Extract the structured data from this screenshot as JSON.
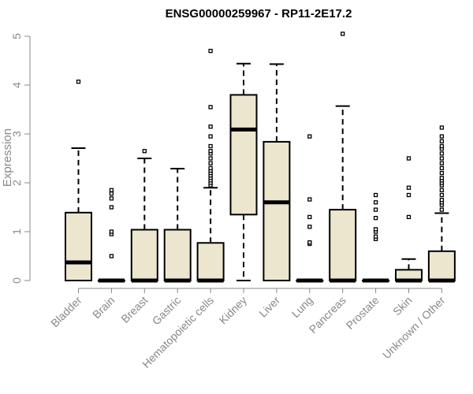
{
  "chart_data": {
    "type": "box",
    "title": "ENSG00000259967 - RP11-2E17.2",
    "ylabel": "Expression",
    "xlabel": "",
    "ylim": [
      0,
      5
    ],
    "yticks": [
      0,
      1,
      2,
      3,
      4,
      5
    ],
    "grid": false,
    "legend": "none",
    "colors": {
      "box_fill": "#ede6cf",
      "box_stroke": "#000000",
      "axis": "#888888",
      "title": "#000000"
    },
    "categories": [
      "Bladder",
      "Brain",
      "Breast",
      "Gastric",
      "Hematopoietic cells",
      "Kidney",
      "Liver",
      "Lung",
      "Pancreas",
      "Prostate",
      "Skin",
      "Unknown / Other"
    ],
    "boxes": [
      {
        "q1": 0,
        "median": 0.37,
        "q3": 1.39,
        "whisker_low": 0,
        "whisker_high": 2.71,
        "outliers": [
          4.07
        ]
      },
      {
        "q1": 0,
        "median": 0,
        "q3": 0,
        "whisker_low": 0,
        "whisker_high": 0,
        "outliers": [
          0.5,
          0.95,
          1.0,
          1.5,
          1.68,
          1.78,
          1.85
        ]
      },
      {
        "q1": 0,
        "median": 0,
        "q3": 1.04,
        "whisker_low": 0,
        "whisker_high": 2.5,
        "outliers": [
          2.65
        ]
      },
      {
        "q1": 0,
        "median": 0,
        "q3": 1.04,
        "whisker_low": 0,
        "whisker_high": 2.29,
        "outliers": []
      },
      {
        "q1": 0,
        "median": 0,
        "q3": 0.77,
        "whisker_low": 0,
        "whisker_high": 1.9,
        "outliers": [
          1.95,
          2.0,
          2.05,
          2.1,
          2.15,
          2.2,
          2.25,
          2.3,
          2.4,
          2.5,
          2.6,
          2.65,
          2.75,
          2.95,
          3.15,
          3.55,
          4.7
        ]
      },
      {
        "q1": 1.35,
        "median": 3.09,
        "q3": 3.8,
        "whisker_low": 0,
        "whisker_high": 4.44,
        "outliers": []
      },
      {
        "q1": 0,
        "median": 1.6,
        "q3": 2.84,
        "whisker_low": 0,
        "whisker_high": 4.43,
        "outliers": []
      },
      {
        "q1": 0,
        "median": 0,
        "q3": 0,
        "whisker_low": 0,
        "whisker_high": 0,
        "outliers": [
          0.75,
          0.78,
          1.1,
          1.3,
          1.66,
          2.95
        ]
      },
      {
        "q1": 0,
        "median": 0,
        "q3": 1.45,
        "whisker_low": 0,
        "whisker_high": 3.57,
        "outliers": [
          5.05
        ]
      },
      {
        "q1": 0,
        "median": 0,
        "q3": 0,
        "whisker_low": 0,
        "whisker_high": 0,
        "outliers": [
          0.85,
          0.9,
          1.0,
          1.05,
          1.28,
          1.45,
          1.6,
          1.75
        ]
      },
      {
        "q1": 0,
        "median": 0,
        "q3": 0.22,
        "whisker_low": 0,
        "whisker_high": 0.44,
        "outliers": [
          1.3,
          1.75,
          1.9,
          2.5
        ]
      },
      {
        "q1": 0,
        "median": 0,
        "q3": 0.6,
        "whisker_low": 0,
        "whisker_high": 1.38,
        "outliers": [
          1.45,
          1.55,
          1.6,
          1.65,
          1.75,
          1.85,
          1.95,
          2.0,
          2.05,
          2.1,
          2.2,
          2.3,
          2.4,
          2.5,
          2.6,
          2.7,
          2.75,
          2.85,
          2.95,
          3.13
        ]
      }
    ]
  }
}
